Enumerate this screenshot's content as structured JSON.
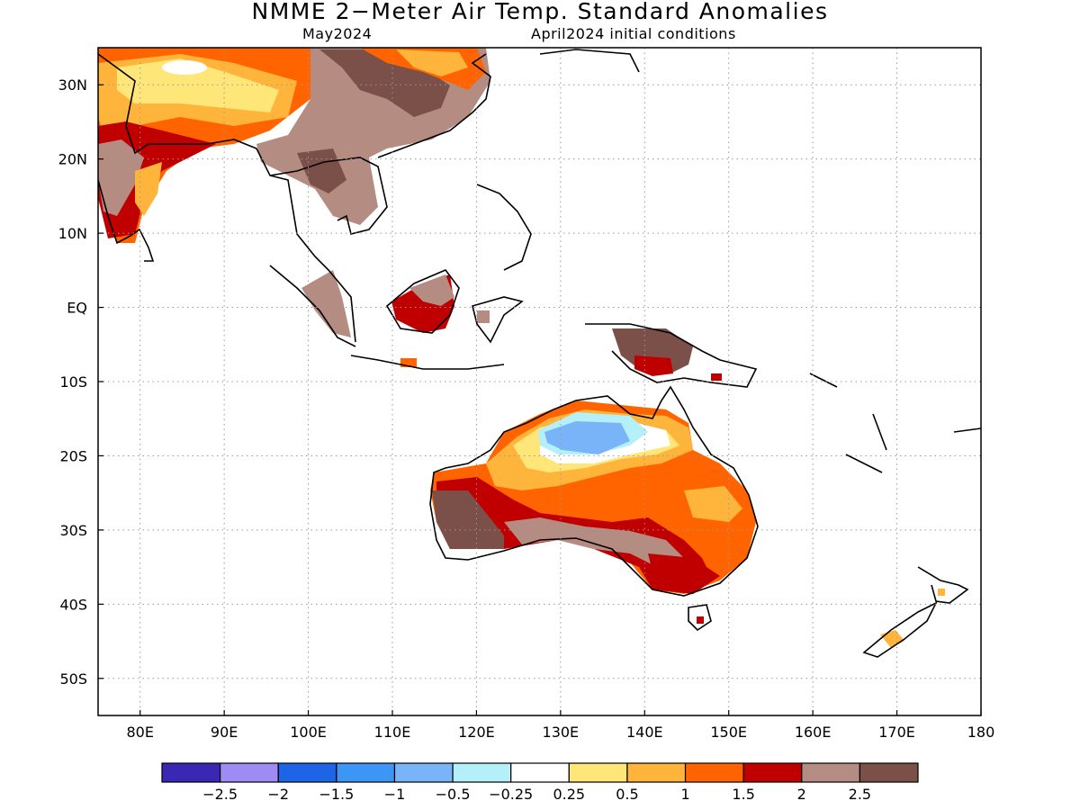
{
  "title": "NMME 2−Meter Air Temp. Standard Anomalies",
  "subtitle_left": "May2024",
  "subtitle_right": "April2024 initial conditions",
  "map": {
    "lon_range": [
      75,
      180
    ],
    "lat_range": [
      -55,
      35
    ],
    "lon_ticks": [
      {
        "value": 80,
        "label": "80E"
      },
      {
        "value": 90,
        "label": "90E"
      },
      {
        "value": 100,
        "label": "100E"
      },
      {
        "value": 110,
        "label": "110E"
      },
      {
        "value": 120,
        "label": "120E"
      },
      {
        "value": 130,
        "label": "130E"
      },
      {
        "value": 140,
        "label": "140E"
      },
      {
        "value": 150,
        "label": "150E"
      },
      {
        "value": 160,
        "label": "160E"
      },
      {
        "value": 170,
        "label": "170E"
      },
      {
        "value": 180,
        "label": "180"
      }
    ],
    "lat_ticks": [
      {
        "value": 30,
        "label": "30N"
      },
      {
        "value": 20,
        "label": "20N"
      },
      {
        "value": 10,
        "label": "10N"
      },
      {
        "value": 0,
        "label": "EQ"
      },
      {
        "value": -10,
        "label": "10S"
      },
      {
        "value": -20,
        "label": "20S"
      },
      {
        "value": -30,
        "label": "30S"
      },
      {
        "value": -40,
        "label": "40S"
      },
      {
        "value": -50,
        "label": "50S"
      }
    ]
  },
  "colorbar": {
    "colors": [
      "#3a28b4",
      "#9e8cf4",
      "#1e64e6",
      "#3c96f5",
      "#78b4f7",
      "#b4f0fa",
      "#ffffff",
      "#ffe678",
      "#ffb43c",
      "#ff6400",
      "#c00000",
      "#b48c82",
      "#7a5048"
    ],
    "labels": [
      "−2.5",
      "−2",
      "−1.5",
      "−1",
      "−0.5",
      "−0.25",
      "0.25",
      "0.5",
      "1",
      "1.5",
      "2",
      "2.5"
    ]
  }
}
